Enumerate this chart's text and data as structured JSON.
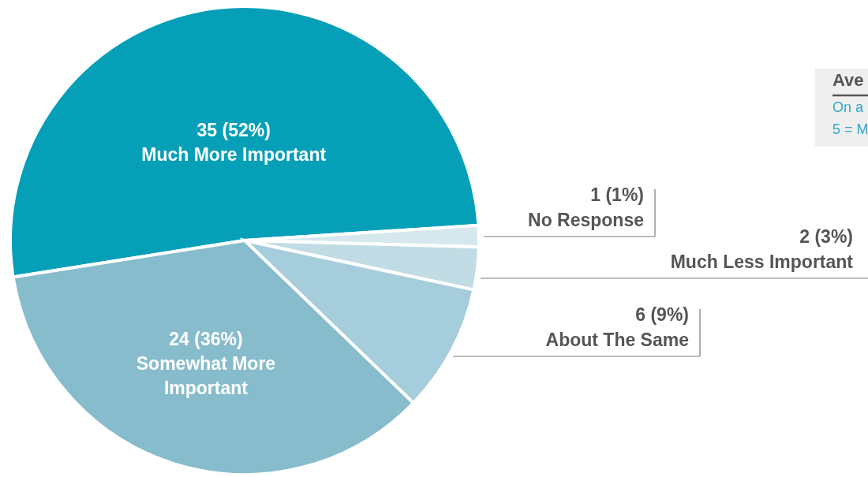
{
  "chart_data": {
    "type": "pie",
    "categories": [
      "Much More Important",
      "No Response",
      "Much Less Important",
      "About The Same",
      "Somewhat More Important"
    ],
    "values": [
      35,
      1,
      2,
      6,
      24
    ],
    "value_labels": [
      "35 (52%)",
      "1 (1%)",
      "2 (3%)",
      "6 (9%)",
      "24 (36%)"
    ],
    "colors": [
      "#05a0b8",
      "#d6e8ee",
      "#c1dce5",
      "#a5cddb",
      "#87bccd"
    ],
    "annotations": [
      "Ave",
      "On a",
      "5 = M"
    ]
  }
}
